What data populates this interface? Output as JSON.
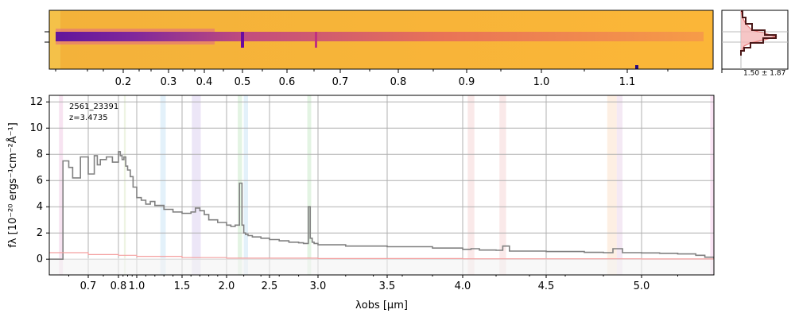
{
  "chart_data": [
    {
      "type": "heatmap",
      "panel": "2d-spectrum",
      "colormap": "plasma",
      "x_top_tick_labels": [
        "0.2",
        "0.3",
        "0.4",
        "0.5",
        "0.6",
        "0.7",
        "0.8",
        "0.9",
        "1.0",
        "1.1"
      ],
      "trace_features_um": [
        0.5,
        0.655
      ]
    },
    {
      "type": "line",
      "panel": "cross-dispersion-profile",
      "annotation": "1.50 ± 1.87",
      "colors": {
        "fill": "#f4b8b8",
        "line": "#5a1a1a",
        "model": "#e87878"
      }
    },
    {
      "type": "line",
      "panel": "1d-spectrum",
      "object_id": "2561_23391",
      "redshift_label": "z=3.4735",
      "xlabel": "λobs [μm]",
      "ylabel": "fλ [10⁻²⁰ ergs⁻¹cm⁻²Å⁻¹]",
      "ylim": [
        -1.2,
        12.5
      ],
      "xlim": [
        0.6,
        5.4
      ],
      "y_ticks": [
        "0",
        "2",
        "4",
        "6",
        "8",
        "10",
        "12"
      ],
      "x_ticks": [
        "0.7",
        "0.8",
        "1.0",
        "1.5",
        "2.0",
        "2.5",
        "3.0",
        "3.5",
        "4.0",
        "4.5",
        "5.0"
      ],
      "grid": true,
      "series": [
        {
          "color": "#808080",
          "x": [
            0.6,
            0.63,
            0.635,
            0.65,
            0.66,
            0.68,
            0.7,
            0.72,
            0.73,
            0.74,
            0.76,
            0.78,
            0.8,
            0.82,
            0.84,
            0.86,
            0.88,
            0.9,
            0.93,
            0.96,
            1.0,
            1.05,
            1.1,
            1.15,
            1.2,
            1.3,
            1.4,
            1.5,
            1.6,
            1.65,
            1.7,
            1.75,
            1.8,
            1.9,
            2.0,
            2.05,
            2.1,
            2.15,
            2.18,
            2.2,
            2.22,
            2.25,
            2.3,
            2.4,
            2.5,
            2.6,
            2.7,
            2.8,
            2.85,
            2.9,
            2.92,
            2.94,
            2.96,
            3.0,
            3.2,
            3.5,
            3.8,
            4.0,
            4.05,
            4.1,
            4.2,
            4.24,
            4.28,
            4.35,
            4.5,
            4.7,
            4.8,
            4.85,
            4.9,
            5.0,
            5.1,
            5.2,
            5.3,
            5.35,
            5.4
          ],
          "y": [
            0,
            0,
            7.5,
            7.0,
            6.2,
            7.8,
            6.5,
            7.9,
            7.2,
            7.6,
            7.8,
            7.4,
            8.2,
            7.9,
            7.6,
            7.8,
            7.1,
            6.8,
            6.3,
            5.5,
            4.7,
            4.5,
            4.2,
            4.4,
            4.1,
            3.8,
            3.6,
            3.5,
            3.6,
            3.9,
            3.7,
            3.4,
            3.0,
            2.8,
            2.6,
            2.5,
            2.6,
            5.8,
            2.6,
            2.0,
            1.9,
            1.8,
            1.7,
            1.6,
            1.5,
            1.4,
            1.3,
            1.25,
            1.2,
            4.0,
            1.6,
            1.3,
            1.2,
            1.1,
            1.0,
            0.95,
            0.85,
            0.75,
            0.8,
            0.7,
            0.68,
            1.0,
            0.62,
            0.62,
            0.58,
            0.52,
            0.5,
            0.8,
            0.5,
            0.48,
            0.45,
            0.4,
            0.3,
            0.15,
            0
          ]
        },
        {
          "color": "#f4a0a0",
          "x": [
            0.6,
            0.7,
            0.8,
            1.0,
            1.5,
            2.0,
            3.0,
            4.0,
            5.0,
            5.4
          ],
          "y": [
            0.5,
            0.35,
            0.3,
            0.22,
            0.12,
            0.08,
            0.05,
            0.03,
            0.02,
            0.01
          ]
        }
      ],
      "highlight_bands": [
        {
          "x0": 0.625,
          "x1": 0.635,
          "color": "#e8b0d8"
        },
        {
          "x0": 0.86,
          "x1": 0.88,
          "color": "#cfe0b0"
        },
        {
          "x0": 1.26,
          "x1": 1.32,
          "color": "#b0d8f0"
        },
        {
          "x0": 1.61,
          "x1": 1.71,
          "color": "#c8b8e8"
        },
        {
          "x0": 2.13,
          "x1": 2.18,
          "color": "#b0e0b0"
        },
        {
          "x0": 2.2,
          "x1": 2.25,
          "color": "#b0d8f0"
        },
        {
          "x0": 2.89,
          "x1": 2.93,
          "color": "#b0e0b0"
        },
        {
          "x0": 4.03,
          "x1": 4.07,
          "color": "#f0c0c0"
        },
        {
          "x0": 4.22,
          "x1": 4.26,
          "color": "#f0c0c0"
        },
        {
          "x0": 4.82,
          "x1": 4.87,
          "color": "#f8d0b0"
        },
        {
          "x0": 4.87,
          "x1": 4.9,
          "color": "#e0c0e0"
        },
        {
          "x0": 5.38,
          "x1": 5.4,
          "color": "#f0b0e0"
        }
      ]
    }
  ]
}
